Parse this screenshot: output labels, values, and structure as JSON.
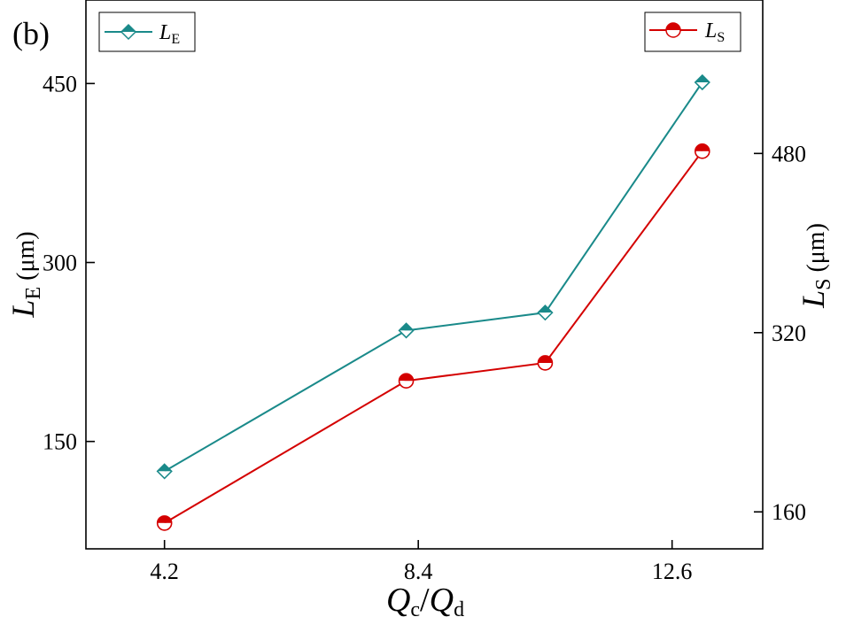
{
  "panel_label": "(b)",
  "colors": {
    "le": "#1a8a8a",
    "ls": "#d40000",
    "axis": "#000000"
  },
  "chart_data": {
    "type": "line",
    "x": [
      4.2,
      8.2,
      10.5,
      13.1
    ],
    "x_ticks": [
      4.2,
      8.4,
      12.6
    ],
    "x_tick_labels": [
      "4.2",
      "8.4",
      "12.6"
    ],
    "xlim": [
      2.9,
      14.1
    ],
    "xlabel": {
      "q1": "Q",
      "s1": "c",
      "slash": "/",
      "q2": "Q",
      "s2": "d"
    },
    "y_left": {
      "label_main": "L",
      "label_sub": "E",
      "label_unit": " (μm)",
      "lim": [
        60,
        520
      ],
      "ticks": [
        150,
        300,
        450
      ],
      "tick_labels": [
        "150",
        "300",
        "450"
      ]
    },
    "y_right": {
      "label_main": "L",
      "label_sub": "S",
      "label_unit": " (μm)",
      "lim": [
        127,
        617
      ],
      "ticks": [
        160,
        320,
        480
      ],
      "tick_labels": [
        "160",
        "320",
        "480"
      ]
    },
    "series": [
      {
        "key": "le",
        "name_main": "L",
        "name_sub": "E",
        "axis": "left",
        "marker": "half-filled-diamond",
        "values": [
          125,
          243,
          258,
          451
        ]
      },
      {
        "key": "ls",
        "name_main": "L",
        "name_sub": "S",
        "axis": "right",
        "marker": "half-filled-circle",
        "values": [
          150,
          277,
          293,
          482
        ]
      }
    ],
    "legend": [
      "top-left",
      "top-right"
    ]
  }
}
